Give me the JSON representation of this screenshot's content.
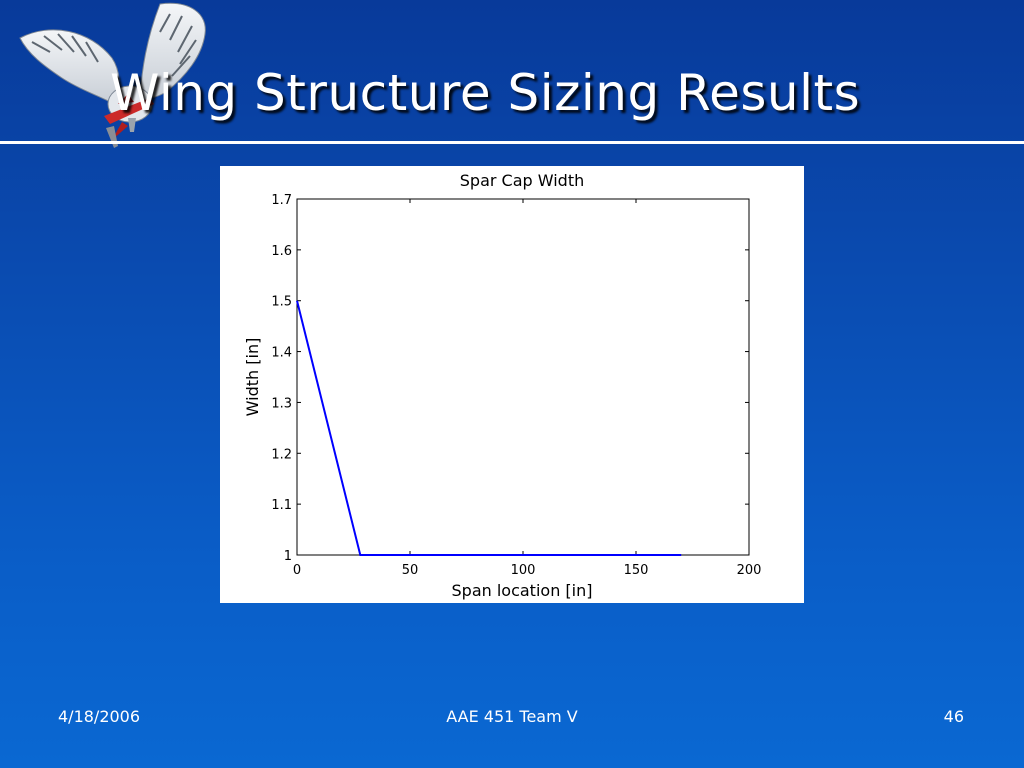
{
  "slide": {
    "title": "Wing Structure Sizing Results",
    "footer": {
      "date": "4/18/2006",
      "team": "AAE 451 Team V",
      "page": "46"
    },
    "colors": {
      "background": "#0a4bb0",
      "line": "#0000ff",
      "text": "#ffffff"
    },
    "logo_icon": "owl-with-aircraft-icon"
  },
  "chart_data": {
    "type": "line",
    "title": "Spar Cap Width",
    "xlabel": "Span location [in]",
    "ylabel": "Width [in]",
    "xlim": [
      0,
      200
    ],
    "ylim": [
      1,
      1.7
    ],
    "xticks": [
      0,
      50,
      100,
      150,
      200
    ],
    "xtick_labels": [
      "0",
      "50",
      "100",
      "150",
      "200"
    ],
    "yticks": [
      1,
      1.1,
      1.2,
      1.3,
      1.4,
      1.5,
      1.6,
      1.7
    ],
    "ytick_labels": [
      "1",
      "1.1",
      "1.2",
      "1.3",
      "1.4",
      "1.5",
      "1.6",
      "1.7"
    ],
    "grid": false,
    "series": [
      {
        "x": [
          0,
          28,
          70,
          95,
          170
        ],
        "y": [
          1.5,
          1.0,
          1.0,
          1.0,
          1.0
        ]
      }
    ]
  }
}
